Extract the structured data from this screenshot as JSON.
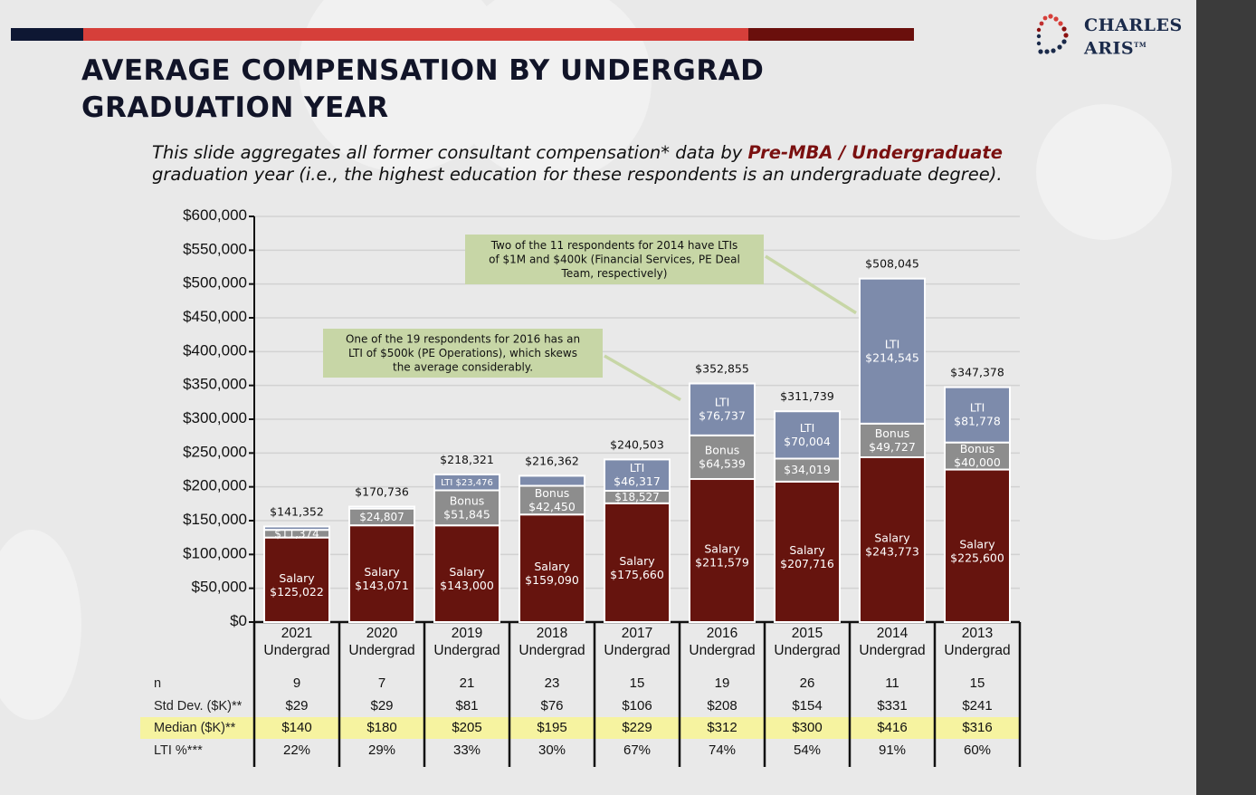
{
  "title": "AVERAGE COMPENSATION BY UNDERGRAD GRADUATION YEAR",
  "subtitle": {
    "before": "This slide aggregates all former consultant compensation* data by ",
    "highlight": "Pre-MBA / Undergraduate",
    "after": " graduation year (i.e., the highest education for these respondents is an undergraduate degree)."
  },
  "logo": {
    "line1": "CHARLES",
    "line2": "ARIS",
    "tm": "TM"
  },
  "colors": {
    "salary": "#66140e",
    "bonus": "#8d8d8d",
    "lti": "#7d8bab",
    "callout": "#c7d6a6",
    "median_highlight": "#f6f3a0",
    "bar_top_blue": "#0e1733",
    "bar_top_red": "#d63f3a",
    "bar_top_dark": "#6a0f0c"
  },
  "chart_data": {
    "type": "bar",
    "stacked": true,
    "ylim": [
      0,
      600000
    ],
    "yticks": [
      "$0",
      "$50,000",
      "$100,000",
      "$150,000",
      "$200,000",
      "$250,000",
      "$300,000",
      "$350,000",
      "$400,000",
      "$450,000",
      "$500,000",
      "$550,000",
      "$600,000"
    ],
    "grid": true,
    "categories": [
      {
        "year": "2021",
        "sub": "Undergrad"
      },
      {
        "year": "2020",
        "sub": "Undergrad"
      },
      {
        "year": "2019",
        "sub": "Undergrad"
      },
      {
        "year": "2018",
        "sub": "Undergrad"
      },
      {
        "year": "2017",
        "sub": "Undergrad"
      },
      {
        "year": "2016",
        "sub": "Undergrad"
      },
      {
        "year": "2015",
        "sub": "Undergrad"
      },
      {
        "year": "2014",
        "sub": "Undergrad"
      },
      {
        "year": "2013",
        "sub": "Undergrad"
      }
    ],
    "series": [
      {
        "key": "salary",
        "values": [
          125022,
          143071,
          143000,
          159090,
          175660,
          211579,
          207716,
          243773,
          225600
        ],
        "labels": [
          "Salary\n$125,022",
          "Salary\n$143,071",
          "Salary\n$143,000",
          "Salary\n$159,090",
          "Salary\n$175,660",
          "Salary\n$211,579",
          "Salary\n$207,716",
          "Salary\n$243,773",
          "Salary\n$225,600"
        ]
      },
      {
        "key": "bonus",
        "values": [
          11374,
          24807,
          51845,
          42450,
          18527,
          64539,
          34019,
          49727,
          40000
        ],
        "labels": [
          "$11,374",
          "$24,807",
          "Bonus\n$51,845",
          "Bonus\n$42,450",
          "$18,527",
          "Bonus\n$64,539",
          "$34,019",
          "Bonus\n$49,727",
          "Bonus\n$40,000"
        ]
      },
      {
        "key": "lti",
        "values": [
          4956,
          2858,
          23476,
          14822,
          46317,
          76737,
          70004,
          214545,
          81778
        ],
        "labels": [
          "",
          "",
          "LTI $23,476",
          "",
          "LTI\n$46,317",
          "LTI\n$76,737",
          "LTI\n$70,004",
          "LTI\n$214,545",
          "LTI\n$81,778"
        ]
      }
    ],
    "totals": [
      "$141,352",
      "$170,736",
      "$218,321",
      "$216,362",
      "$240,503",
      "$352,855",
      "$311,739",
      "$508,045",
      "$347,378"
    ],
    "callouts": [
      {
        "text": "One of the 19 respondents for 2016 has an\nLTI of $500k (PE Operations), which skews\nthe average considerably.",
        "target": "2016"
      },
      {
        "text": "Two of the 11 respondents for 2014 have LTIs\nof $1M and $400k (Financial Services, PE Deal\nTeam, respectively)",
        "target": "2014"
      }
    ],
    "table": {
      "rows": [
        {
          "label": "n",
          "values": [
            "9",
            "7",
            "21",
            "23",
            "15",
            "19",
            "26",
            "11",
            "15"
          ],
          "highlight": false
        },
        {
          "label": "Std Dev. ($K)**",
          "values": [
            "$29",
            "$29",
            "$81",
            "$76",
            "$106",
            "$208",
            "$154",
            "$331",
            "$241"
          ],
          "highlight": false
        },
        {
          "label": "Median ($K)**",
          "values": [
            "$140",
            "$180",
            "$205",
            "$195",
            "$229",
            "$312",
            "$300",
            "$416",
            "$316"
          ],
          "highlight": true
        },
        {
          "label": "LTI %***",
          "values": [
            "22%",
            "29%",
            "33%",
            "30%",
            "67%",
            "74%",
            "54%",
            "91%",
            "60%"
          ],
          "highlight": false
        }
      ]
    }
  }
}
